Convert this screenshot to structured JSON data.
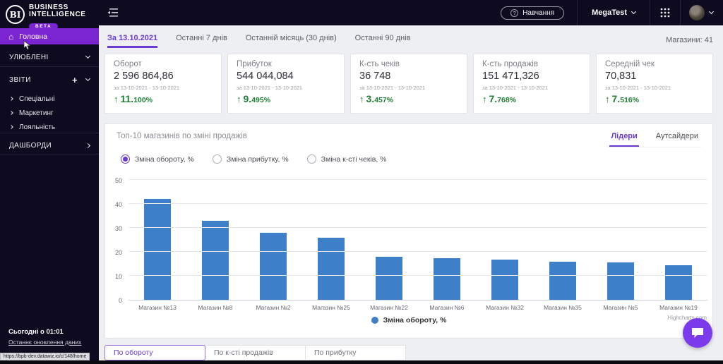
{
  "colors": {
    "accent_purple": "#7b24d1",
    "link_purple": "#6b3bd1",
    "bar_blue": "#3e7fc9",
    "positive_green": "#1e7e34",
    "sidebar_bg": "#0e0a1f"
  },
  "icons": {
    "home": "⌂",
    "plus": "+",
    "question": "?",
    "arrow_up": "↑"
  },
  "sidebar": {
    "logo": {
      "abbr": "BI",
      "line1": "BUSINESS",
      "line2": "INTELLIGENCE",
      "beta": "BETA"
    },
    "home_label": "Головна",
    "favorites_label": "УЛЮБЛЕНІ",
    "reports_label": "ЗВІТИ",
    "report_items": [
      "Спеціальні",
      "Маркетинг",
      "Лояльність"
    ],
    "dashboards_label": "ДАШБОРДИ",
    "updated_title": "Сьогодні о 01:01",
    "updated_caption": "Останнє оновлення даних",
    "status_url": "https://bpb-dev.datawiz.io/c/148/home"
  },
  "topbar": {
    "training_label": "Навчання",
    "user_name": "MegaTest"
  },
  "filters": {
    "tabs": [
      "За 13.10.2021",
      "Останні 7 днів",
      "Останній місяць (30 днів)",
      "Останні 90 днів"
    ],
    "active_tab": 0,
    "stores_label": "Магазини: 41"
  },
  "kpi_cards": [
    {
      "title": "Оборот",
      "value": "2 596 864,86",
      "period": "за 13-10-2021 - 13-10-2021",
      "delta": "11.100%"
    },
    {
      "title": "Прибуток",
      "value": "544 044,084",
      "period": "за 13-10-2021 - 13-10-2021",
      "delta": "9.495%"
    },
    {
      "title": "К-сть чеків",
      "value": "36 748",
      "period": "за 13-10-2021 - 13-10-2021",
      "delta": "3.457%"
    },
    {
      "title": "К-сть продажів",
      "value": "151 471,326",
      "period": "за 13-10-2021 - 13-10-2021",
      "delta": "7.768%"
    },
    {
      "title": "Середній чек",
      "value": "70,831",
      "period": "за 13-10-2021 - 13-10-2021",
      "delta": "7.516%"
    }
  ],
  "chart_panel": {
    "title": "Топ-10 магазинів по зміні продажів",
    "tabs": [
      "Лідери",
      "Аутсайдери"
    ],
    "active_tab": 0,
    "radios": [
      {
        "label": "Зміна обороту, %",
        "checked": true
      },
      {
        "label": "Зміна прибутку, %",
        "checked": false
      },
      {
        "label": "Зміна к-сті чеків, %",
        "checked": false
      }
    ],
    "legend": "Зміна обороту, %",
    "watermark": "Highcharts.com"
  },
  "chart_data": {
    "type": "bar",
    "title": "Топ-10 магазинів по зміні продажів",
    "categories": [
      "Магазин №13",
      "Магазин №8",
      "Магазин №2",
      "Магазин №25",
      "Магазин №22",
      "Магазин №6",
      "Магазин №32",
      "Магазин №35",
      "Магазин №5",
      "Магазин №19"
    ],
    "series": [
      {
        "name": "Зміна обороту, %",
        "values": [
          42,
          33,
          28,
          26,
          18,
          17.5,
          16.7,
          16,
          15.5,
          14.5
        ]
      }
    ],
    "xlabel": "",
    "ylabel": "",
    "ylim": [
      0,
      50
    ],
    "yticks": [
      0,
      10,
      20,
      30,
      40,
      50
    ],
    "grid": true,
    "legend_position": "bottom"
  },
  "bottom_tabs": {
    "tabs": [
      "По обороту",
      "По к-сті продажів",
      "По прибутку"
    ],
    "active_tab": 0
  }
}
